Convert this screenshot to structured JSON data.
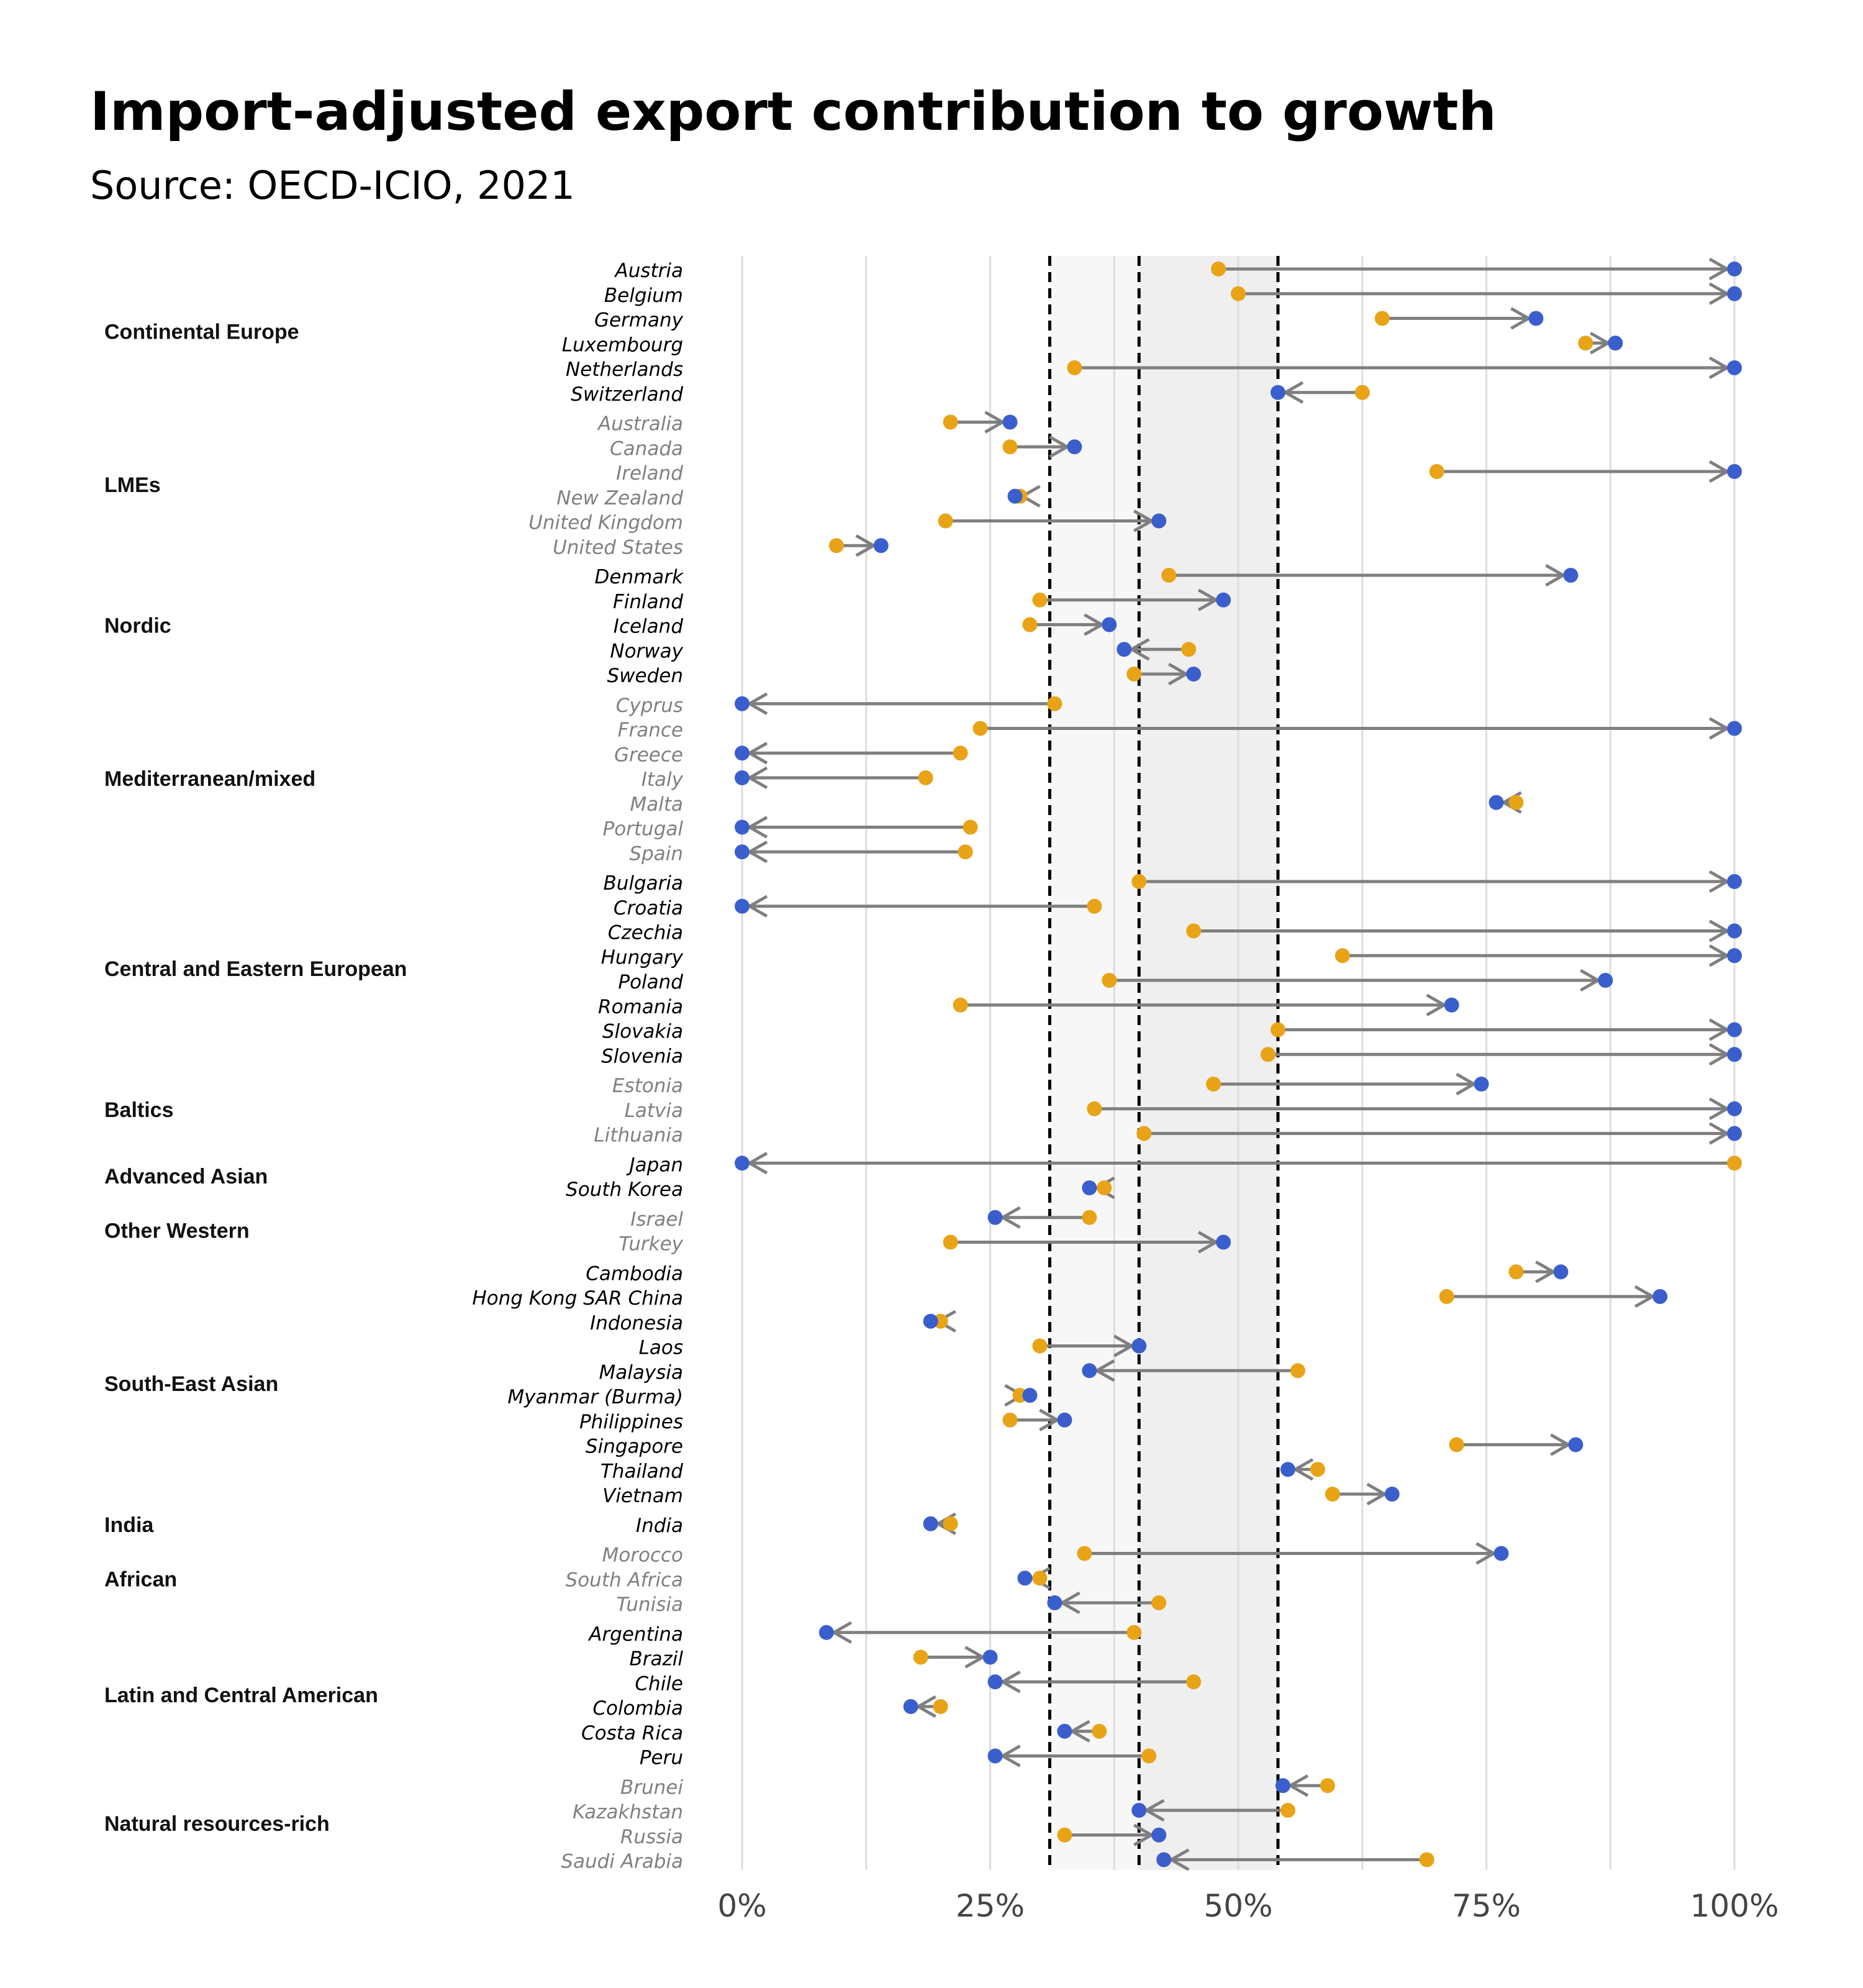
{
  "title": "Import-adjusted export contribution to growth",
  "subtitle": "Source: OECD-ICIO, 2021",
  "colors": {
    "start_point": "#E8A317",
    "end_point": "#3A5FCD",
    "arrow": "#7F7F7F",
    "highlight_band_light": "#F7F7F7",
    "highlight_band_dark": "#EFEFEF",
    "country_label_primary": "#000000",
    "country_label_secondary": "#808080"
  },
  "chart_data": {
    "type": "dumbbell-arrow",
    "x_axis": {
      "min": 0,
      "max": 100,
      "ticks": [
        0,
        25,
        50,
        75,
        100
      ],
      "tick_labels": [
        "0%",
        "25%",
        "50%",
        "75%",
        "100%"
      ]
    },
    "reference_lines": [
      31,
      40,
      54
    ],
    "shaded_band": [
      31,
      54
    ],
    "grid": true,
    "groups": [
      {
        "name": "Continental Europe",
        "style": "primary",
        "rows": [
          {
            "country": "Austria",
            "start": 48,
            "end": 100
          },
          {
            "country": "Belgium",
            "start": 50,
            "end": 100
          },
          {
            "country": "Germany",
            "start": 64.5,
            "end": 80
          },
          {
            "country": "Luxembourg",
            "start": 85,
            "end": 88
          },
          {
            "country": "Netherlands",
            "start": 33.5,
            "end": 100
          },
          {
            "country": "Switzerland",
            "start": 62.5,
            "end": 54
          }
        ]
      },
      {
        "name": "LMEs",
        "style": "secondary",
        "rows": [
          {
            "country": "Australia",
            "start": 21,
            "end": 27
          },
          {
            "country": "Canada",
            "start": 27,
            "end": 33.5
          },
          {
            "country": "Ireland",
            "start": 70,
            "end": 100
          },
          {
            "country": "New Zealand",
            "start": 28,
            "end": 27.5
          },
          {
            "country": "United Kingdom",
            "start": 20.5,
            "end": 42
          },
          {
            "country": "United States",
            "start": 9.5,
            "end": 14
          }
        ]
      },
      {
        "name": "Nordic",
        "style": "primary",
        "rows": [
          {
            "country": "Denmark",
            "start": 43,
            "end": 83.5
          },
          {
            "country": "Finland",
            "start": 30,
            "end": 48.5
          },
          {
            "country": "Iceland",
            "start": 29,
            "end": 37
          },
          {
            "country": "Norway",
            "start": 45,
            "end": 38.5
          },
          {
            "country": "Sweden",
            "start": 39.5,
            "end": 45.5
          }
        ]
      },
      {
        "name": "Mediterranean/mixed",
        "style": "secondary",
        "rows": [
          {
            "country": "Cyprus",
            "start": 31.5,
            "end": 0
          },
          {
            "country": "France",
            "start": 24,
            "end": 100
          },
          {
            "country": "Greece",
            "start": 22,
            "end": 0
          },
          {
            "country": "Italy",
            "start": 18.5,
            "end": 0
          },
          {
            "country": "Malta",
            "start": 78,
            "end": 76
          },
          {
            "country": "Portugal",
            "start": 23,
            "end": 0
          },
          {
            "country": "Spain",
            "start": 22.5,
            "end": 0
          }
        ]
      },
      {
        "name": "Central and Eastern European",
        "style": "primary",
        "rows": [
          {
            "country": "Bulgaria",
            "start": 40,
            "end": 100
          },
          {
            "country": "Croatia",
            "start": 35.5,
            "end": 0
          },
          {
            "country": "Czechia",
            "start": 45.5,
            "end": 100
          },
          {
            "country": "Hungary",
            "start": 60.5,
            "end": 100
          },
          {
            "country": "Poland",
            "start": 37,
            "end": 87
          },
          {
            "country": "Romania",
            "start": 22,
            "end": 71.5
          },
          {
            "country": "Slovakia",
            "start": 54,
            "end": 100
          },
          {
            "country": "Slovenia",
            "start": 53,
            "end": 100
          }
        ]
      },
      {
        "name": "Baltics",
        "style": "secondary",
        "rows": [
          {
            "country": "Estonia",
            "start": 47.5,
            "end": 74.5
          },
          {
            "country": "Latvia",
            "start": 35.5,
            "end": 100
          },
          {
            "country": "Lithuania",
            "start": 40.5,
            "end": 100
          }
        ]
      },
      {
        "name": "Advanced Asian",
        "style": "primary",
        "rows": [
          {
            "country": "Japan",
            "start": 100,
            "end": 0
          },
          {
            "country": "South Korea",
            "start": 36.5,
            "end": 35
          }
        ]
      },
      {
        "name": "Other Western",
        "style": "secondary",
        "rows": [
          {
            "country": "Israel",
            "start": 35,
            "end": 25.5
          },
          {
            "country": "Turkey",
            "start": 21,
            "end": 48.5
          }
        ]
      },
      {
        "name": "South-East Asian",
        "style": "primary",
        "rows": [
          {
            "country": "Cambodia",
            "start": 78,
            "end": 82.5
          },
          {
            "country": "Hong Kong SAR China",
            "start": 71,
            "end": 92.5
          },
          {
            "country": "Indonesia",
            "start": 20,
            "end": 19
          },
          {
            "country": "Laos",
            "start": 30,
            "end": 40
          },
          {
            "country": "Malaysia",
            "start": 56,
            "end": 35
          },
          {
            "country": "Myanmar (Burma)",
            "start": 28,
            "end": 29
          },
          {
            "country": "Philippines",
            "start": 27,
            "end": 32.5
          },
          {
            "country": "Singapore",
            "start": 72,
            "end": 84
          },
          {
            "country": "Thailand",
            "start": 58,
            "end": 55
          },
          {
            "country": "Vietnam",
            "start": 59.5,
            "end": 65.5
          }
        ]
      },
      {
        "name": "India",
        "style": "primary",
        "rows": [
          {
            "country": "India",
            "start": 21,
            "end": 19
          }
        ]
      },
      {
        "name": "African",
        "style": "secondary",
        "rows": [
          {
            "country": "Morocco",
            "start": 34.5,
            "end": 76.5
          },
          {
            "country": "South Africa",
            "start": 30,
            "end": 28.5
          },
          {
            "country": "Tunisia",
            "start": 42,
            "end": 31.5
          }
        ]
      },
      {
        "name": "Latin and Central American",
        "style": "primary",
        "rows": [
          {
            "country": "Argentina",
            "start": 39.5,
            "end": 8.5
          },
          {
            "country": "Brazil",
            "start": 18,
            "end": 25
          },
          {
            "country": "Chile",
            "start": 45.5,
            "end": 25.5
          },
          {
            "country": "Colombia",
            "start": 20,
            "end": 17
          },
          {
            "country": "Costa Rica",
            "start": 36,
            "end": 32.5
          },
          {
            "country": "Peru",
            "start": 41,
            "end": 25.5
          }
        ]
      },
      {
        "name": "Natural resources-rich",
        "style": "secondary",
        "rows": [
          {
            "country": "Brunei",
            "start": 59,
            "end": 54.5
          },
          {
            "country": "Kazakhstan",
            "start": 55,
            "end": 40
          },
          {
            "country": "Russia",
            "start": 32.5,
            "end": 42
          },
          {
            "country": "Saudi Arabia",
            "start": 69,
            "end": 42.5
          }
        ]
      }
    ]
  }
}
